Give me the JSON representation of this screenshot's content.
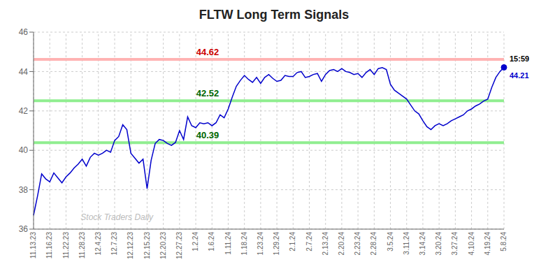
{
  "chart_data": {
    "type": "line",
    "title": "FLTW Long Term Signals",
    "color": "#0000cc",
    "grid": true,
    "ylim": [
      36,
      46
    ],
    "yticks": [
      36,
      38,
      40,
      42,
      44,
      46
    ],
    "categories": [
      "11.13.23",
      null,
      null,
      null,
      "11.16.23",
      null,
      null,
      null,
      "11.22.23",
      null,
      null,
      null,
      "11.28.23",
      null,
      null,
      null,
      "12.4.23",
      null,
      null,
      null,
      "12.7.23",
      null,
      null,
      null,
      "12.12.23",
      null,
      null,
      null,
      "12.15.23",
      null,
      null,
      null,
      "12.20.23",
      null,
      null,
      null,
      "12.27.23",
      null,
      null,
      null,
      "1.2.24",
      null,
      null,
      null,
      "1.6.24",
      null,
      null,
      null,
      "1.11.24",
      null,
      null,
      null,
      "1.18.24",
      null,
      null,
      null,
      "1.23.24",
      null,
      null,
      null,
      "1.29.24",
      null,
      null,
      null,
      "2.1.24",
      null,
      null,
      null,
      "2.7.24",
      null,
      null,
      null,
      "2.13.24",
      null,
      null,
      null,
      "2.20.24",
      null,
      null,
      null,
      "2.23.24",
      null,
      null,
      null,
      "2.28.24",
      null,
      null,
      null,
      "3.5.24",
      null,
      null,
      null,
      "3.11.24",
      null,
      null,
      null,
      "3.14.24",
      null,
      null,
      null,
      "3.20.24",
      null,
      null,
      null,
      "3.27.24",
      null,
      null,
      null,
      "4.10.24",
      null,
      null,
      null,
      "4.19.24",
      null,
      null,
      null,
      "5.8.24"
    ],
    "values": [
      36.7,
      37.7,
      38.8,
      38.55,
      38.4,
      38.85,
      38.6,
      38.35,
      38.65,
      38.85,
      39.1,
      39.3,
      39.55,
      39.2,
      39.65,
      39.85,
      39.75,
      39.85,
      40.0,
      39.9,
      40.5,
      40.7,
      41.3,
      41.05,
      39.85,
      39.6,
      39.35,
      39.55,
      38.05,
      39.5,
      40.35,
      40.55,
      40.5,
      40.35,
      40.25,
      40.4,
      41.0,
      40.55,
      41.7,
      41.25,
      41.15,
      41.4,
      41.35,
      41.4,
      41.25,
      41.4,
      41.8,
      41.65,
      42.1,
      42.7,
      43.25,
      43.55,
      43.8,
      43.6,
      43.45,
      43.7,
      43.4,
      43.7,
      43.85,
      43.65,
      43.5,
      43.55,
      43.8,
      43.75,
      43.75,
      43.95,
      44.0,
      43.7,
      43.75,
      43.85,
      43.9,
      43.5,
      43.85,
      44.05,
      44.1,
      44.0,
      44.15,
      44.0,
      43.95,
      43.85,
      43.9,
      43.7,
      43.95,
      44.1,
      43.85,
      44.15,
      44.2,
      44.1,
      43.35,
      43.05,
      42.9,
      42.75,
      42.6,
      42.3,
      42.0,
      41.85,
      41.5,
      41.2,
      41.05,
      41.25,
      41.35,
      41.25,
      41.35,
      41.5,
      41.6,
      41.7,
      41.8,
      42.0,
      42.1,
      42.25,
      42.35,
      42.5,
      42.6,
      43.2,
      43.7,
      44.0,
      44.21
    ],
    "reference_lines": [
      {
        "value": 44.62,
        "label": "44.62",
        "color": "#ffb3b3",
        "label_color": "#cc0000"
      },
      {
        "value": 42.52,
        "label": "42.52",
        "color": "#90ee90",
        "label_color": "#006600"
      },
      {
        "value": 40.39,
        "label": "40.39",
        "color": "#90ee90",
        "label_color": "#006600"
      }
    ],
    "annotations": [
      {
        "text": "15:59",
        "color": "#000000"
      },
      {
        "text": "44.21",
        "color": "#0000cc"
      }
    ],
    "watermark": {
      "text": "Stock Traders Daily",
      "color": "#bbbbbb"
    }
  }
}
